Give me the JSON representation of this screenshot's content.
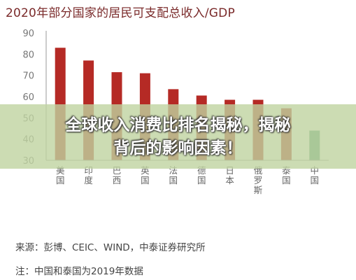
{
  "chart_data": {
    "type": "bar",
    "title": "2020年部分国家的居民可支配总收入/GDP",
    "categories": [
      [
        "美",
        "国"
      ],
      [
        "印",
        "度"
      ],
      [
        "巴",
        "西"
      ],
      [
        "英",
        "国"
      ],
      [
        "法",
        "国"
      ],
      [
        "德",
        "国"
      ],
      [
        "日",
        "本"
      ],
      [
        "俄",
        "罗",
        "斯"
      ],
      [
        "泰",
        "国"
      ],
      [
        "中",
        "国"
      ]
    ],
    "values": [
      83,
      77,
      71.5,
      71,
      63.5,
      60.5,
      58.5,
      58.5,
      54.5,
      44
    ],
    "ylim": [
      30,
      90
    ],
    "yticks": [
      30,
      40,
      50,
      60,
      70,
      80,
      90
    ],
    "xlabel": "",
    "ylabel": "",
    "grid": false,
    "colors": {
      "bar": "#b52a25",
      "highlight_bar": "#4f9a7a",
      "axis": "#9a9a9a",
      "tick_text": "#777777"
    },
    "highlight_index": 9
  },
  "overlay": {
    "line1": "全球收入消费比排名揭秘，揭秘",
    "line2": "背后的影响因素！"
  },
  "footnotes": {
    "source": "来源：彭博、CEIC、WIND，中泰证券研究所",
    "note": "注：中国和泰国为2019年数据"
  }
}
